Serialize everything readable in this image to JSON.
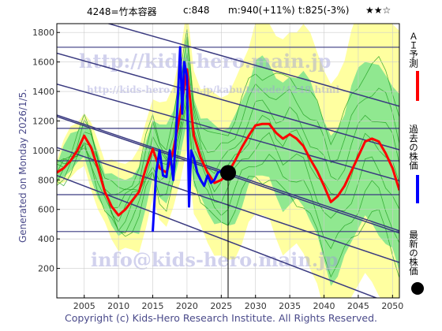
{
  "header": {
    "ticker": "4248=竹本容器",
    "current": "c:848",
    "mid": "m:940(+11%)",
    "target": "t:825(-3%)",
    "stars": "★★☆"
  },
  "generated_note": "Generated on Monday 2026/1/5.",
  "footer": "Copyright (c) Kids-Hero Research Institute. All Rights Reserved.",
  "watermarks": {
    "top": "http://kids-hero.main.jp",
    "mid": "http://kids-hero.main.jp/kabu/tocode/4248.html",
    "bottom": "info@kids-hero.main.jp"
  },
  "legend": [
    {
      "label": "ＡＩ予測",
      "color": "#ff0000"
    },
    {
      "label": "過去の株価",
      "color": "#0000ff"
    },
    {
      "label": "最新の株価",
      "color": "#000000"
    }
  ],
  "colors": {
    "band_outer": "#ffffa0",
    "band_inner": "#90e890",
    "trend": "#3a3a80",
    "ai": "#ff0000",
    "hist": "#0000ff",
    "marker": "#000000"
  },
  "chart_data": {
    "type": "line",
    "xlim": [
      2001,
      2051
    ],
    "ylim": [
      0,
      1860
    ],
    "xticks": [
      2005,
      2010,
      2015,
      2020,
      2025,
      2030,
      2035,
      2040,
      2045,
      2050
    ],
    "yticks": [
      200,
      400,
      600,
      800,
      1000,
      1200,
      1400,
      1600,
      1800
    ],
    "latest": {
      "x": 2026.0,
      "y": 848
    },
    "horizontal_levels": [
      1700,
      1150,
      930,
      700,
      450
    ],
    "trend_lines": [
      {
        "x": [
          2001,
          2051
        ],
        "y": [
          1660,
          1005
        ]
      },
      {
        "x": [
          2001,
          2051
        ],
        "y": [
          1450,
          795
        ]
      },
      {
        "x": [
          2001,
          2051
        ],
        "y": [
          1240,
          455
        ]
      },
      {
        "x": [
          2001,
          2051
        ],
        "y": [
          1230,
          440
        ]
      },
      {
        "x": [
          2001,
          2051
        ],
        "y": [
          1020,
          240
        ]
      },
      {
        "x": [
          2001,
          2051
        ],
        "y": [
          830,
          -60
        ]
      },
      {
        "x": [
          2001,
          2051
        ],
        "y": [
          1960,
          1300
        ]
      }
    ],
    "series": [
      {
        "name": "ＡＩ予測",
        "x": [
          2001,
          2002,
          2003,
          2004,
          2005,
          2006,
          2007,
          2008,
          2009,
          2010,
          2011,
          2012,
          2013,
          2014,
          2015,
          2016,
          2017,
          2018,
          2019,
          2020,
          2021,
          2022,
          2023,
          2024,
          2025,
          2026,
          2027,
          2028,
          2029,
          2030,
          2031,
          2032,
          2033,
          2034,
          2035,
          2036,
          2037,
          2038,
          2039,
          2040,
          2041,
          2042,
          2043,
          2044,
          2045,
          2046,
          2047,
          2048,
          2049,
          2050,
          2051
        ],
        "y": [
          850,
          880,
          930,
          1000,
          1100,
          1020,
          880,
          720,
          620,
          560,
          600,
          660,
          720,
          880,
          1010,
          880,
          850,
          1000,
          1250,
          1550,
          1100,
          950,
          850,
          780,
          800,
          848,
          930,
          1020,
          1100,
          1170,
          1180,
          1180,
          1120,
          1080,
          1110,
          1080,
          1030,
          940,
          860,
          760,
          650,
          690,
          760,
          860,
          960,
          1060,
          1080,
          1060,
          980,
          880,
          730
        ]
      },
      {
        "name": "過去の株価",
        "x": [
          2015.0,
          2015.5,
          2016.0,
          2016.5,
          2017.0,
          2017.5,
          2018.0,
          2018.5,
          2019.0,
          2019.3,
          2019.6,
          2020.0,
          2020.3,
          2020.6,
          2021.0,
          2021.5,
          2022.0,
          2022.5,
          2023.0,
          2023.5,
          2024.0,
          2024.5,
          2025.0,
          2025.5
        ],
        "y": [
          450,
          850,
          1000,
          830,
          820,
          1000,
          800,
          1200,
          1700,
          1250,
          1600,
          1500,
          620,
          1000,
          950,
          850,
          800,
          760,
          830,
          780,
          800,
          850,
          860,
          848
        ]
      }
    ]
  }
}
